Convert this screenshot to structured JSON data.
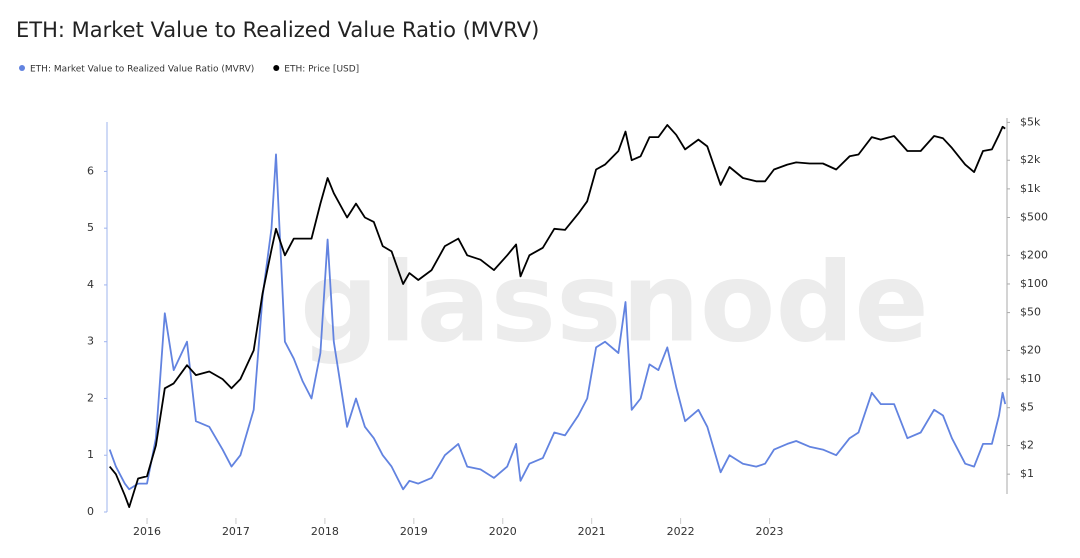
{
  "chart_data": {
    "type": "line",
    "title": "ETH: Market Value to Realized Value Ratio (MVRV)",
    "watermark": "glassnode",
    "x": [
      2015.58,
      2015.65,
      2015.75,
      2015.8,
      2015.9,
      2016.0,
      2016.1,
      2016.2,
      2016.3,
      2016.45,
      2016.55,
      2016.7,
      2016.85,
      2016.95,
      2017.05,
      2017.2,
      2017.3,
      2017.4,
      2017.45,
      2017.55,
      2017.65,
      2017.75,
      2017.85,
      2017.95,
      2018.03,
      2018.1,
      2018.25,
      2018.35,
      2018.45,
      2018.55,
      2018.65,
      2018.75,
      2018.88,
      2018.95,
      2019.05,
      2019.2,
      2019.35,
      2019.5,
      2019.6,
      2019.75,
      2019.9,
      2020.05,
      2020.15,
      2020.2,
      2020.3,
      2020.45,
      2020.58,
      2020.7,
      2020.85,
      2020.95,
      2021.05,
      2021.15,
      2021.3,
      2021.38,
      2021.45,
      2021.55,
      2021.65,
      2021.75,
      2021.85,
      2021.95,
      2022.05,
      2022.2,
      2022.3,
      2022.45,
      2022.55,
      2022.7,
      2022.85,
      2022.95,
      2023.05,
      2023.2,
      2023.3,
      2023.45,
      2023.6,
      2023.75,
      2023.9,
      2024.0,
      2024.15,
      2024.25,
      2024.4,
      2024.55,
      2024.7,
      2024.85,
      2024.95,
      2025.05,
      2025.2,
      2025.3,
      2025.4,
      2025.5,
      2025.58,
      2025.62,
      2025.65
    ],
    "series": [
      {
        "name": "ETH: Market Value to Realized Value Ratio (MVRV)",
        "color": "#6283e0",
        "values": [
          1.1,
          0.8,
          0.5,
          0.4,
          0.5,
          0.5,
          1.3,
          3.5,
          2.5,
          3.0,
          1.6,
          1.5,
          1.1,
          0.8,
          1.0,
          1.8,
          3.8,
          5.0,
          6.3,
          3.0,
          2.7,
          2.3,
          2.0,
          2.8,
          4.8,
          3.0,
          1.5,
          2.0,
          1.5,
          1.3,
          1.0,
          0.8,
          0.4,
          0.55,
          0.5,
          0.6,
          1.0,
          1.2,
          0.8,
          0.75,
          0.6,
          0.8,
          1.2,
          0.55,
          0.85,
          0.95,
          1.4,
          1.35,
          1.7,
          2.0,
          2.9,
          3.0,
          2.8,
          3.7,
          1.8,
          2.0,
          2.6,
          2.5,
          2.9,
          2.2,
          1.6,
          1.8,
          1.5,
          0.7,
          1.0,
          0.85,
          0.8,
          0.85,
          1.1,
          1.2,
          1.25,
          1.15,
          1.1,
          1.0,
          1.3,
          1.4,
          2.1,
          1.9,
          1.9,
          1.3,
          1.4,
          1.8,
          1.7,
          1.3,
          0.85,
          0.8,
          1.2,
          1.2,
          1.7,
          2.1,
          1.9
        ]
      },
      {
        "name": "ETH: Price [USD]",
        "color": "#000000",
        "axis": "y2",
        "values": [
          1.2,
          1.0,
          0.6,
          0.45,
          0.9,
          0.95,
          2.0,
          8,
          9,
          14,
          11,
          12,
          10,
          8,
          10,
          20,
          80,
          230,
          380,
          200,
          300,
          300,
          300,
          700,
          1300,
          900,
          500,
          700,
          500,
          450,
          250,
          220,
          100,
          130,
          110,
          140,
          250,
          300,
          200,
          180,
          140,
          200,
          260,
          120,
          200,
          240,
          380,
          370,
          550,
          740,
          1600,
          1800,
          2500,
          4000,
          2000,
          2200,
          3500,
          3500,
          4700,
          3700,
          2600,
          3300,
          2800,
          1100,
          1700,
          1300,
          1200,
          1200,
          1600,
          1800,
          1900,
          1850,
          1850,
          1600,
          2200,
          2300,
          3500,
          3300,
          3600,
          2500,
          2500,
          3600,
          3400,
          2700,
          1800,
          1500,
          2500,
          2600,
          3700,
          4500,
          4300
        ]
      }
    ],
    "xlim": [
      2015.55,
      2025.67
    ],
    "xticks": [
      2016,
      2017,
      2018,
      2019,
      2020,
      2021,
      2022,
      2023
    ],
    "ylim": [
      0,
      6.87
    ],
    "yticks": [
      0,
      1,
      2,
      3,
      4,
      5,
      6
    ],
    "y2lim": [
      0.4,
      5300
    ],
    "y2scale": "log",
    "y2ticks": [
      {
        "value": 1,
        "label": "$1"
      },
      {
        "value": 2,
        "label": "$2"
      },
      {
        "value": 5,
        "label": "$5"
      },
      {
        "value": 10,
        "label": "$10"
      },
      {
        "value": 20,
        "label": "$20"
      },
      {
        "value": 50,
        "label": "$50"
      },
      {
        "value": 100,
        "label": "$100"
      },
      {
        "value": 200,
        "label": "$200"
      },
      {
        "value": 500,
        "label": "$500"
      },
      {
        "value": 1000,
        "label": "$1k"
      },
      {
        "value": 2000,
        "label": "$2k"
      },
      {
        "value": 5000,
        "label": "$5k"
      }
    ],
    "grid": false
  }
}
